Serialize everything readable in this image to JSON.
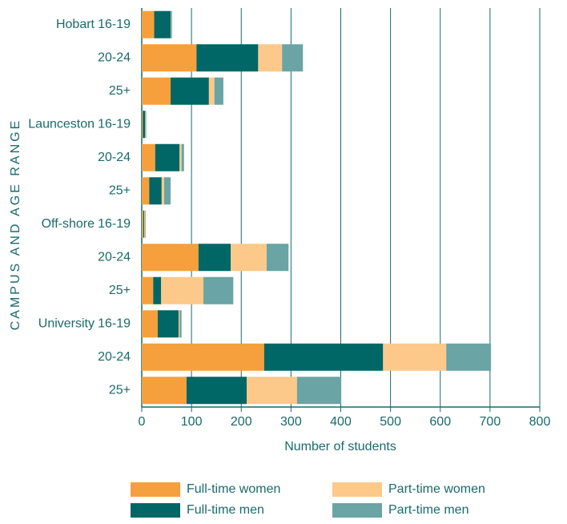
{
  "chart_data": {
    "type": "stacked_barh",
    "ylabel": "CAMPUS AND AGE RANGE",
    "xlabel": "Number of students",
    "campus": [
      "Hobart",
      null,
      null,
      "Launceston",
      null,
      null,
      "Off-shore",
      null,
      null,
      "University",
      null,
      null
    ],
    "categories": [
      "16-19",
      "20-24",
      "25+",
      "16-19",
      "20-24",
      "25+",
      "16-19",
      "20-24",
      "25+",
      "16-19",
      "20-24",
      "25+"
    ],
    "series": [
      {
        "name": "Full-time women",
        "color": "#f5a03c",
        "values": [
          25,
          110,
          58,
          2,
          27,
          15,
          3,
          114,
          23,
          32,
          246,
          90
        ]
      },
      {
        "name": "Full-time men",
        "color": "#006666",
        "values": [
          33,
          124,
          77,
          5,
          49,
          25,
          2,
          65,
          16,
          42,
          239,
          121
        ]
      },
      {
        "name": "Part-time women",
        "color": "#fcc98a",
        "values": [
          1,
          48,
          11,
          1,
          4,
          5,
          2,
          72,
          85,
          2,
          127,
          101
        ]
      },
      {
        "name": "Part-time men",
        "color": "#6aa4a4",
        "values": [
          2,
          42,
          18,
          1,
          5,
          13,
          1,
          44,
          60,
          4,
          90,
          89
        ]
      }
    ],
    "xlim": [
      0,
      800
    ],
    "xticks": [
      0,
      100,
      200,
      300,
      400,
      500,
      600,
      700,
      800
    ],
    "grid": true
  }
}
